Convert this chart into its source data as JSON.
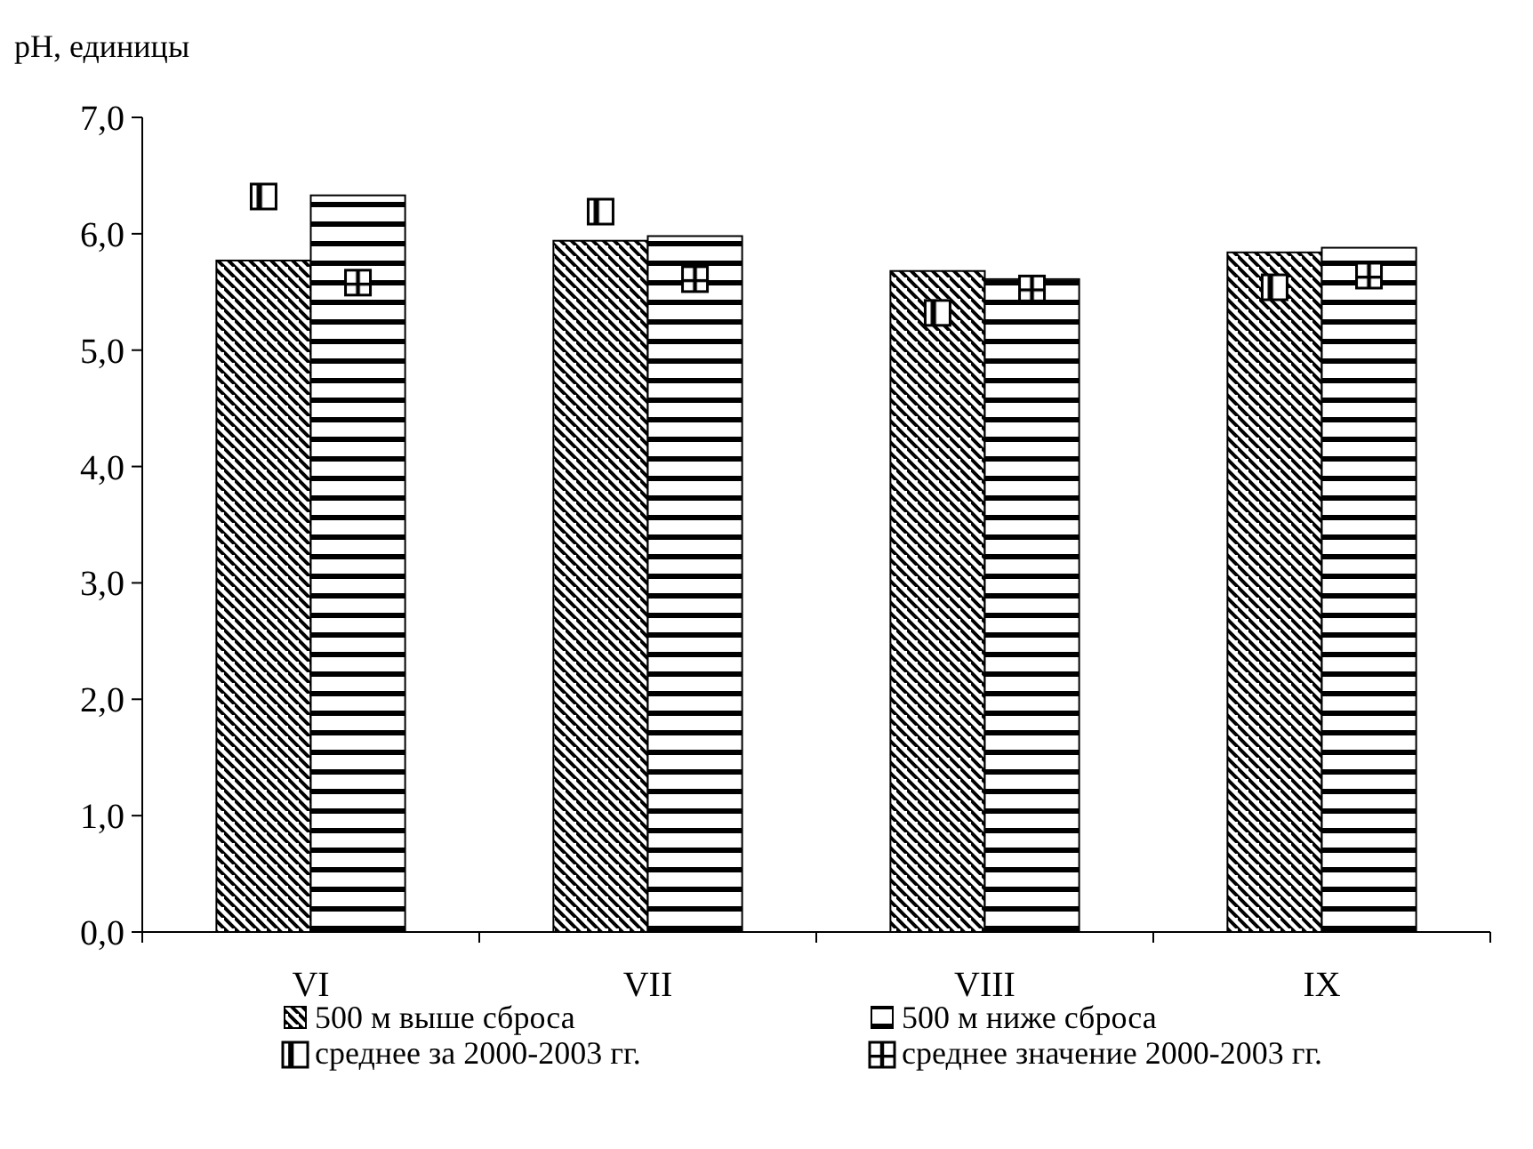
{
  "chart_data": {
    "type": "bar",
    "ylabel": "pH, единицы",
    "categories": [
      "VI",
      "VII",
      "VIII",
      "IX"
    ],
    "ylim": [
      0,
      7
    ],
    "yticks": [
      {
        "value": 0,
        "label": "0,0"
      },
      {
        "value": 1,
        "label": "1,0"
      },
      {
        "value": 2,
        "label": "2,0"
      },
      {
        "value": 3,
        "label": "3,0"
      },
      {
        "value": 4,
        "label": "4,0"
      },
      {
        "value": 5,
        "label": "5,0"
      },
      {
        "value": 6,
        "label": "6,0"
      },
      {
        "value": 7,
        "label": "7,0"
      }
    ],
    "legend": "bottom",
    "grid": false,
    "series": [
      {
        "name": "500 м выше сброса",
        "color": "#000000",
        "values": [
          5.77,
          5.94,
          5.68,
          5.84
        ]
      },
      {
        "name": "500 м ниже сброса",
        "color": "#000000",
        "values": [
          6.33,
          5.98,
          5.61,
          5.88
        ]
      },
      {
        "name": "среднее за 2000-2003 гг.",
        "type": "scatter",
        "marker": "square",
        "color": "#000000",
        "values": [
          6.32,
          6.19,
          5.32,
          5.54
        ]
      },
      {
        "name": "среднее значение 2000-2003 гг.",
        "type": "scatter",
        "marker": "square",
        "color": "#000000",
        "values": [
          5.58,
          5.61,
          5.53,
          5.64
        ]
      }
    ]
  }
}
